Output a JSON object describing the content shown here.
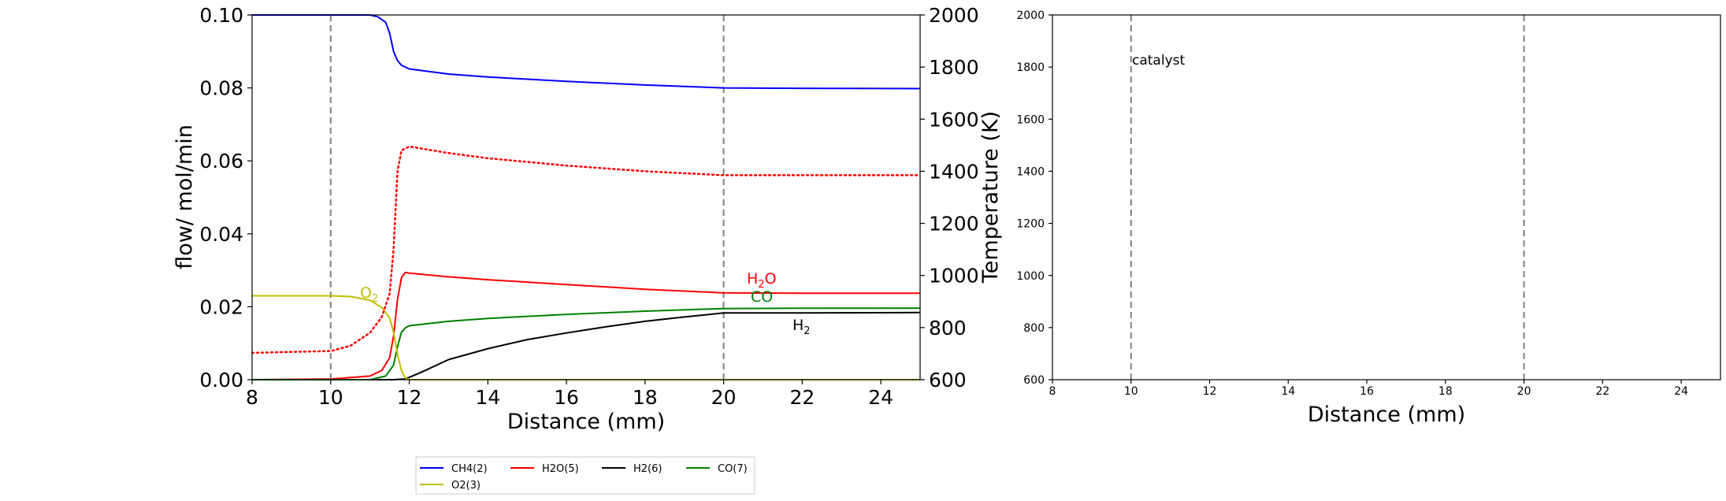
{
  "left_plot": {
    "xlabel": "Distance (mm)",
    "ylabel": "flow/ mol/min",
    "ylabel_right": "Temperature (K)",
    "x_ticks": [
      "8",
      "10",
      "12",
      "14",
      "16",
      "18",
      "20",
      "22",
      "24"
    ],
    "y_ticks": [
      "0.00",
      "0.02",
      "0.04",
      "0.06",
      "0.08",
      "0.10"
    ],
    "y2_ticks": [
      "600",
      "800",
      "1000",
      "1200",
      "1400",
      "1600",
      "1800",
      "2000"
    ],
    "annotations": [
      {
        "text": "O",
        "sub": "2",
        "color": "#bfbf00"
      },
      {
        "text": "H",
        "sub": "2",
        "post": "O",
        "color": "#ff0000"
      },
      {
        "text": "CO",
        "color": "#008000"
      },
      {
        "text": "H",
        "sub": "2",
        "color": "#000000"
      }
    ]
  },
  "right_plot": {
    "xlabel": "Distance (mm)",
    "annotation": "catalyst",
    "x_ticks": [
      "8",
      "10",
      "12",
      "14",
      "16",
      "18",
      "20",
      "22",
      "24"
    ],
    "y_ticks": [
      "600",
      "800",
      "1000",
      "1200",
      "1400",
      "1600",
      "1800",
      "2000"
    ]
  },
  "legend": [
    {
      "label": "CH4(2)",
      "color": "#0000ff"
    },
    {
      "label": "H2O(5)",
      "color": "#ff0000"
    },
    {
      "label": "H2(6)",
      "color": "#000000"
    },
    {
      "label": "CO(7)",
      "color": "#008000"
    },
    {
      "label": "O2(3)",
      "color": "#bfbf00"
    }
  ],
  "chart_data": [
    {
      "type": "line",
      "xlabel": "Distance (mm)",
      "ylabel": "flow/ mol/min",
      "y2label": "Temperature (K)",
      "xlim": [
        8,
        25
      ],
      "ylim": [
        0,
        0.1
      ],
      "y2lim": [
        600,
        2000
      ],
      "vlines": [
        10,
        20
      ],
      "series": [
        {
          "name": "CH4(2)",
          "color": "#0000ff",
          "axis": "left",
          "x": [
            8,
            10,
            11,
            11.2,
            11.4,
            11.5,
            11.6,
            11.7,
            11.8,
            12,
            13,
            14,
            16,
            18,
            20,
            22,
            25
          ],
          "y": [
            0.1,
            0.1,
            0.1,
            0.0995,
            0.098,
            0.095,
            0.09,
            0.0875,
            0.0862,
            0.0852,
            0.0838,
            0.083,
            0.0818,
            0.0808,
            0.08,
            0.0799,
            0.0798
          ]
        },
        {
          "name": "H2O(5)",
          "color": "#ff0000",
          "axis": "left",
          "x": [
            8,
            10,
            11,
            11.3,
            11.5,
            11.6,
            11.7,
            11.8,
            11.9,
            12,
            13,
            14,
            16,
            18,
            20,
            22,
            25
          ],
          "y": [
            0.0,
            0.0002,
            0.001,
            0.0025,
            0.006,
            0.012,
            0.022,
            0.028,
            0.0294,
            0.0292,
            0.0282,
            0.0274,
            0.0261,
            0.0248,
            0.0238,
            0.0237,
            0.0237
          ]
        },
        {
          "name": "H2(6)",
          "color": "#000000",
          "axis": "left",
          "x": [
            8,
            11.6,
            11.9,
            12.3,
            13,
            14,
            15,
            16,
            17,
            18,
            19,
            20,
            22,
            25
          ],
          "y": [
            0,
            0,
            0.0002,
            0.002,
            0.0055,
            0.0085,
            0.011,
            0.0128,
            0.0145,
            0.016,
            0.0172,
            0.0183,
            0.0183,
            0.0184
          ]
        },
        {
          "name": "CO(7)",
          "color": "#008000",
          "axis": "left",
          "x": [
            8,
            11,
            11.4,
            11.6,
            11.7,
            11.8,
            11.9,
            12,
            13,
            14,
            16,
            18,
            20,
            22,
            25
          ],
          "y": [
            0,
            0,
            0.001,
            0.004,
            0.009,
            0.013,
            0.0142,
            0.0148,
            0.016,
            0.0168,
            0.0179,
            0.0188,
            0.0195,
            0.0196,
            0.0196
          ]
        },
        {
          "name": "O2(3)",
          "color": "#bfbf00",
          "axis": "left",
          "x": [
            8,
            10,
            10.5,
            11,
            11.3,
            11.5,
            11.6,
            11.7,
            11.8,
            11.9,
            12,
            25
          ],
          "y": [
            0.023,
            0.023,
            0.0228,
            0.0218,
            0.0198,
            0.017,
            0.013,
            0.007,
            0.0025,
            0.0005,
            0.0,
            0.0
          ]
        },
        {
          "name": "",
          "style": "dotted",
          "color": "#ff0000",
          "axis": "right",
          "x": [
            8,
            10,
            10.5,
            11,
            11.3,
            11.5,
            11.6,
            11.65,
            11.7,
            11.8,
            12,
            13,
            14,
            16,
            18,
            20,
            22,
            25
          ],
          "y": [
            703,
            710,
            730,
            780,
            840,
            930,
            1100,
            1250,
            1400,
            1480,
            1495,
            1470,
            1450,
            1422,
            1400,
            1385,
            1385,
            1385
          ]
        }
      ]
    },
    {
      "type": "line",
      "xlabel": "Distance (mm)",
      "xlim": [
        8,
        25
      ],
      "ylim": [
        600,
        2000
      ],
      "vlines": [
        10,
        20
      ],
      "series": []
    }
  ]
}
